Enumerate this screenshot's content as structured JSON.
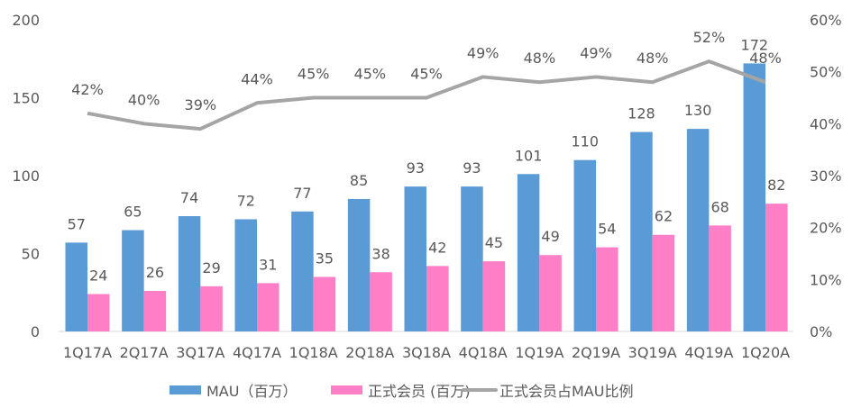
{
  "chart_data": {
    "type": "bar+line",
    "categories": [
      "1Q17A",
      "2Q17A",
      "3Q17A",
      "4Q17A",
      "1Q18A",
      "2Q18A",
      "3Q18A",
      "4Q18A",
      "1Q19A",
      "2Q19A",
      "3Q19A",
      "4Q19A",
      "1Q20A"
    ],
    "series": [
      {
        "name": "MAU（百万）",
        "type": "bar",
        "axis": "left",
        "color": "#5B9BD5",
        "values": [
          57,
          65,
          74,
          72,
          77,
          85,
          93,
          93,
          101,
          110,
          128,
          130,
          172
        ]
      },
      {
        "name": "正式会员 (百万)",
        "type": "bar",
        "axis": "left",
        "color": "#FF7FC6",
        "values": [
          24,
          26,
          29,
          31,
          35,
          38,
          42,
          45,
          49,
          54,
          62,
          68,
          82
        ]
      },
      {
        "name": "正式会员占MAU比例",
        "type": "line",
        "axis": "right",
        "color": "#A5A5A5",
        "values": [
          42,
          40,
          39,
          44,
          45,
          45,
          45,
          49,
          48,
          49,
          48,
          52,
          48
        ],
        "labels": [
          "42%",
          "40%",
          "39%",
          "44%",
          "45%",
          "45%",
          "45%",
          "49%",
          "48%",
          "49%",
          "48%",
          "52%",
          "48%"
        ]
      }
    ],
    "left_axis": {
      "ylim": [
        0,
        200
      ],
      "ticks": [
        "0",
        "50",
        "100",
        "150",
        "200"
      ]
    },
    "right_axis": {
      "ylim": [
        0,
        60
      ],
      "ticks": [
        "0%",
        "10%",
        "20%",
        "30%",
        "40%",
        "50%",
        "60%"
      ]
    },
    "grid": false,
    "legend": "bottom"
  }
}
